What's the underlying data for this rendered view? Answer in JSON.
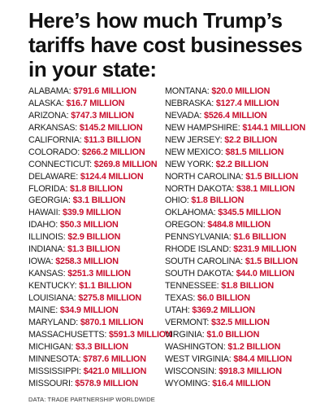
{
  "title": "Here’s how much Trump’s tariffs have cost businesses in your state:",
  "colors": {
    "amount": "#c8102e",
    "text": "#111111"
  },
  "left": [
    {
      "state": "ALABAMA:",
      "amount": "$791.6 MILLION"
    },
    {
      "state": "ALASKA:",
      "amount": "$16.7 MILLION"
    },
    {
      "state": "ARIZONA:",
      "amount": "$747.3 MILLION"
    },
    {
      "state": "ARKANSAS:",
      "amount": "$145.2 MILLION"
    },
    {
      "state": "CALIFORNIA:",
      "amount": "$11.3 BILLION"
    },
    {
      "state": "COLORADO:",
      "amount": "$266.2 MILLION"
    },
    {
      "state": "CONNECTICUT:",
      "amount": "$269.8 MILLION"
    },
    {
      "state": "DELAWARE:",
      "amount": "$124.4 MILLION"
    },
    {
      "state": "FLORIDA:",
      "amount": "$1.8 BILLION"
    },
    {
      "state": "GEORGIA:",
      "amount": "$3.1 BILLION"
    },
    {
      "state": "HAWAII:",
      "amount": "$39.9 MILLION"
    },
    {
      "state": "IDAHO:",
      "amount": "$50.3 MILLION"
    },
    {
      "state": "ILLINOIS:",
      "amount": "$2.9 BILLION"
    },
    {
      "state": "INDIANA:",
      "amount": "$1.3 BILLION"
    },
    {
      "state": "IOWA:",
      "amount": "$258.3 MILLION"
    },
    {
      "state": "KANSAS:",
      "amount": "$251.3 MILLION"
    },
    {
      "state": "KENTUCKY:",
      "amount": "$1.1 BILLION"
    },
    {
      "state": "LOUISIANA:",
      "amount": "$275.8 MILLION"
    },
    {
      "state": "MAINE:",
      "amount": "$34.9 MILLION"
    },
    {
      "state": "MARYLAND:",
      "amount": "$870.1 MILLION"
    },
    {
      "state": "MASSACHUSETTS:",
      "amount": "$591.3 MILLION"
    },
    {
      "state": "MICHIGAN:",
      "amount": "$3.3 BILLION"
    },
    {
      "state": "MINNESOTA:",
      "amount": "$787.6 MILLION"
    },
    {
      "state": "MISSISSIPPI:",
      "amount": "$421.0 MILLION"
    },
    {
      "state": "MISSOURI:",
      "amount": "$578.9 MILLION"
    }
  ],
  "right": [
    {
      "state": "MONTANA:",
      "amount": "$20.0 MILLION"
    },
    {
      "state": "NEBRASKA:",
      "amount": "$127.4 MILLION"
    },
    {
      "state": "NEVADA:",
      "amount": "$526.4 MILLION"
    },
    {
      "state": "NEW HAMPSHIRE:",
      "amount": "$144.1 MILLION"
    },
    {
      "state": "NEW JERSEY:",
      "amount": "$2.2 BILLION"
    },
    {
      "state": "NEW MEXICO:",
      "amount": "$81.5 MILLION"
    },
    {
      "state": "NEW YORK:",
      "amount": "$2.2 BILLION"
    },
    {
      "state": "NORTH CAROLINA:",
      "amount": "$1.5 BILLION"
    },
    {
      "state": "NORTH DAKOTA:",
      "amount": "$38.1 MILLION"
    },
    {
      "state": "OHIO:",
      "amount": "$1.8 BILLION"
    },
    {
      "state": "OKLAHOMA:",
      "amount": "$345.5 MILLION"
    },
    {
      "state": "OREGON:",
      "amount": "$484.8 MILLION"
    },
    {
      "state": "PENNSYLVANIA:",
      "amount": "$1.6 BILLION"
    },
    {
      "state": "RHODE ISLAND:",
      "amount": "$231.9 MILLION"
    },
    {
      "state": "SOUTH CAROLINA:",
      "amount": "$1.5 BILLION"
    },
    {
      "state": "SOUTH DAKOTA:",
      "amount": "$44.0 MILLION"
    },
    {
      "state": "TENNESSEE:",
      "amount": "$1.8 BILLION"
    },
    {
      "state": "TEXAS:",
      "amount": "$6.0 BILLION"
    },
    {
      "state": "UTAH:",
      "amount": "$369.2 MILLION"
    },
    {
      "state": "VERMONT:",
      "amount": "$32.5 MILLION"
    },
    {
      "state": "VIRGINIA:",
      "amount": "$1.0 BILLION"
    },
    {
      "state": "WASHINGTON:",
      "amount": "$1.2 BILLION"
    },
    {
      "state": "WEST VIRGINIA:",
      "amount": "$84.4 MILLION"
    },
    {
      "state": "WISCONSIN:",
      "amount": "$918.3 MILLION"
    },
    {
      "state": "WYOMING:",
      "amount": "$16.4 MILLION"
    }
  ],
  "source": "DATA: TRADE PARTNERSHIP WORLDWIDE"
}
